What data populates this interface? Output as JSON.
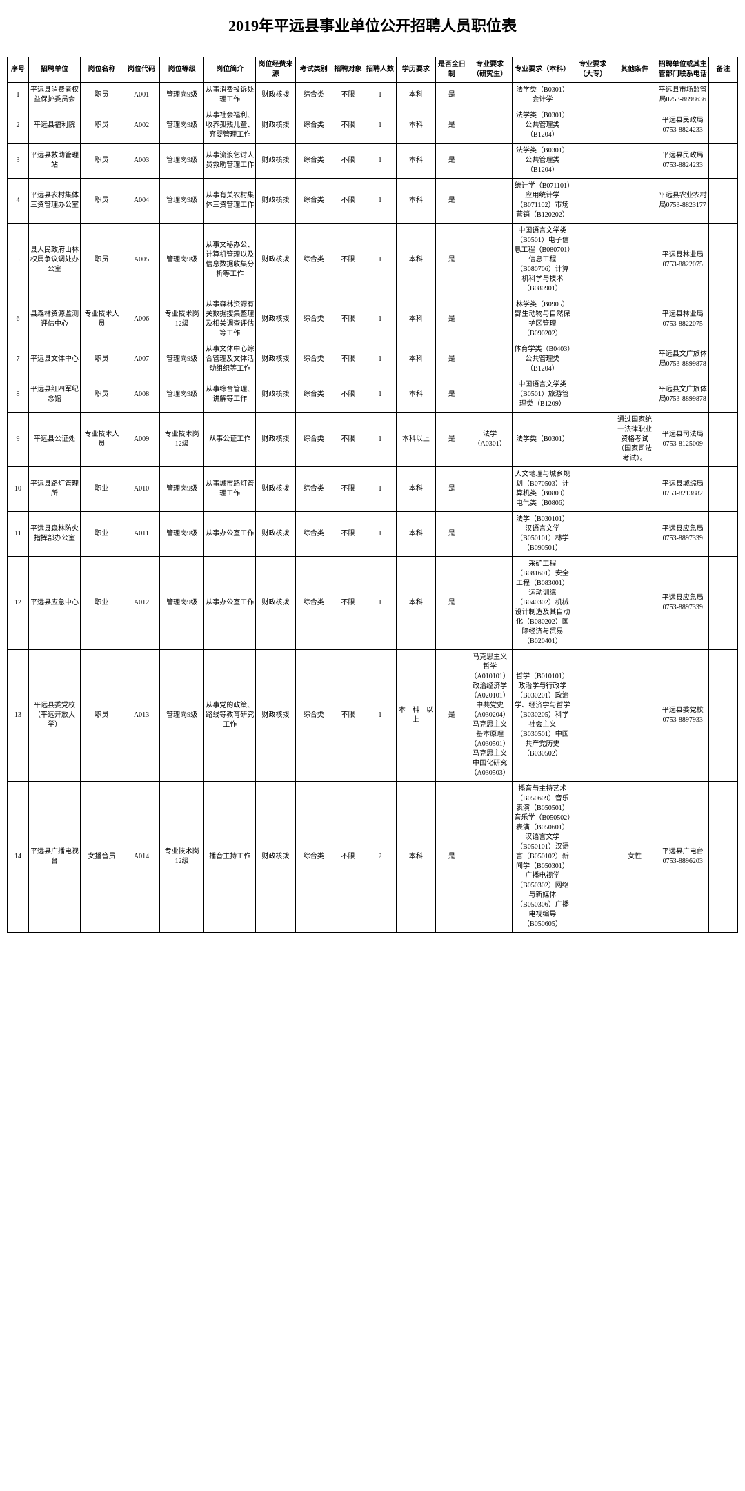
{
  "title": "2019年平远县事业单位公开招聘人员职位表",
  "headers": {
    "seq": "序号",
    "unit": "招聘单位",
    "pos": "岗位名称",
    "code": "岗位代码",
    "level": "岗位等级",
    "intro": "岗位简介",
    "fund": "岗位经费来源",
    "exam": "考试类别",
    "target": "招聘对象",
    "num": "招聘人数",
    "edu": "学历要求",
    "fulltime": "是否全日制",
    "grad": "专业要求（研究生）",
    "bach": "专业要求（本科）",
    "assoc": "专业要求（大专）",
    "other": "其他条件",
    "tel": "招聘单位或其主管部门联系电话",
    "remark": "备注"
  },
  "rows": [
    {
      "seq": "1",
      "unit": "平远县消费者权益保护委员会",
      "pos": "职员",
      "code": "A001",
      "level": "管理岗9级",
      "intro": "从事消费投诉处理工作",
      "fund": "财政核拨",
      "exam": "综合类",
      "target": "不限",
      "num": "1",
      "edu": "本科",
      "fulltime": "是",
      "grad": "",
      "bach": "法学类（B0301）会计学",
      "assoc": "",
      "other": "",
      "tel": "平远县市场监管局0753-8898636",
      "remark": ""
    },
    {
      "seq": "2",
      "unit": "平远县福利院",
      "pos": "职员",
      "code": "A002",
      "level": "管理岗9级",
      "intro": "从事社会福利、收养孤残儿童、弃婴管理工作",
      "fund": "财政核拨",
      "exam": "综合类",
      "target": "不限",
      "num": "1",
      "edu": "本科",
      "fulltime": "是",
      "grad": "",
      "bach": "法学类（B0301）公共管理类（B1204）",
      "assoc": "",
      "other": "",
      "tel": "平远县民政局0753-8824233",
      "remark": ""
    },
    {
      "seq": "3",
      "unit": "平远县救助管理站",
      "pos": "职员",
      "code": "A003",
      "level": "管理岗9级",
      "intro": "从事流浪乞讨人员救助管理工作",
      "fund": "财政核拨",
      "exam": "综合类",
      "target": "不限",
      "num": "1",
      "edu": "本科",
      "fulltime": "是",
      "grad": "",
      "bach": "法学类（B0301）公共管理类（B1204）",
      "assoc": "",
      "other": "",
      "tel": "平远县民政局0753-8824233",
      "remark": ""
    },
    {
      "seq": "4",
      "unit": "平远县农村集体三资管理办公室",
      "pos": "职员",
      "code": "A004",
      "level": "管理岗9级",
      "intro": "从事有关农村集体三资管理工作",
      "fund": "财政核拨",
      "exam": "综合类",
      "target": "不限",
      "num": "1",
      "edu": "本科",
      "fulltime": "是",
      "grad": "",
      "bach": "统计学（B071101）应用统计学（B071102）市场营销（B120202）",
      "assoc": "",
      "other": "",
      "tel": "平远县农业农村局0753-8823177",
      "remark": ""
    },
    {
      "seq": "5",
      "unit": "县人民政府山林权属争议调处办公室",
      "pos": "职员",
      "code": "A005",
      "level": "管理岗9级",
      "intro": "从事文秘办公、计算机管理以及信息数据收集分析等工作",
      "fund": "财政核拨",
      "exam": "综合类",
      "target": "不限",
      "num": "1",
      "edu": "本科",
      "fulltime": "是",
      "grad": "",
      "bach": "中国语言文学类（B0501）电子信息工程（B080701）信息工程（B080706）计算机科学与技术（B080901）",
      "assoc": "",
      "other": "",
      "tel": "平远县林业局0753-8822075",
      "remark": ""
    },
    {
      "seq": "6",
      "unit": "县森林资源监测评估中心",
      "pos": "专业技术人员",
      "code": "A006",
      "level": "专业技术岗12级",
      "intro": "从事森林资源有关数据搜集整理及相关调查评估等工作",
      "fund": "财政核拨",
      "exam": "综合类",
      "target": "不限",
      "num": "1",
      "edu": "本科",
      "fulltime": "是",
      "grad": "",
      "bach": "林学类（B0905）野生动物与自然保护区管理（B090202）",
      "assoc": "",
      "other": "",
      "tel": "平远县林业局0753-8822075",
      "remark": ""
    },
    {
      "seq": "7",
      "unit": "平远县文体中心",
      "pos": "职员",
      "code": "A007",
      "level": "管理岗9级",
      "intro": "从事文体中心综合管理及文体活动组织等工作",
      "fund": "财政核拨",
      "exam": "综合类",
      "target": "不限",
      "num": "1",
      "edu": "本科",
      "fulltime": "是",
      "grad": "",
      "bach": "体育学类（B0403）公共管理类（B1204）",
      "assoc": "",
      "other": "",
      "tel": "平远县文广旅体局0753-8899878",
      "remark": ""
    },
    {
      "seq": "8",
      "unit": "平远县红四军纪念馆",
      "pos": "职员",
      "code": "A008",
      "level": "管理岗9级",
      "intro": "从事综合管理、讲解等工作",
      "fund": "财政核拨",
      "exam": "综合类",
      "target": "不限",
      "num": "1",
      "edu": "本科",
      "fulltime": "是",
      "grad": "",
      "bach": "中国语言文学类（B0501）旅游管理类（B1209）",
      "assoc": "",
      "other": "",
      "tel": "平远县文广旅体局0753-8899878",
      "remark": ""
    },
    {
      "seq": "9",
      "unit": "平远县公证处",
      "pos": "专业技术人员",
      "code": "A009",
      "level": "专业技术岗12级",
      "intro": "从事公证工作",
      "fund": "财政核拨",
      "exam": "综合类",
      "target": "不限",
      "num": "1",
      "edu": "本科以上",
      "fulltime": "是",
      "grad": "法学（A0301）",
      "bach": "法学类（B0301）",
      "assoc": "",
      "other": "通过国家统一法律职业资格考试（国家司法考试）。",
      "tel": "平远县司法局0753-8125009",
      "remark": ""
    },
    {
      "seq": "10",
      "unit": "平远县路灯管理所",
      "pos": "职业",
      "code": "A010",
      "level": "管理岗9级",
      "intro": "从事城市路灯管理工作",
      "fund": "财政核拨",
      "exam": "综合类",
      "target": "不限",
      "num": "1",
      "edu": "本科",
      "fulltime": "是",
      "grad": "",
      "bach": "人文地理与城乡规划（B070503）计算机类（B0809）电气类（B0806）",
      "assoc": "",
      "other": "",
      "tel": "平远县城综局0753-8213882",
      "remark": ""
    },
    {
      "seq": "11",
      "unit": "平远县森林防火指挥部办公室",
      "pos": "职业",
      "code": "A011",
      "level": "管理岗9级",
      "intro": "从事办公室工作",
      "fund": "财政核拨",
      "exam": "综合类",
      "target": "不限",
      "num": "1",
      "edu": "本科",
      "fulltime": "是",
      "grad": "",
      "bach": "法学（B030101）汉语言文学（B050101）林学（B090501）",
      "assoc": "",
      "other": "",
      "tel": "平远县应急局0753-8897339",
      "remark": ""
    },
    {
      "seq": "12",
      "unit": "平远县应急中心",
      "pos": "职业",
      "code": "A012",
      "level": "管理岗9级",
      "intro": "从事办公室工作",
      "fund": "财政核拨",
      "exam": "综合类",
      "target": "不限",
      "num": "1",
      "edu": "本科",
      "fulltime": "是",
      "grad": "",
      "bach": "采矿工程（B081601）安全工程（B083001）运动训练（B040302）机械设计制造及其自动化（B080202）国际经济与贸易（B020401）",
      "assoc": "",
      "other": "",
      "tel": "平远县应急局0753-8897339",
      "remark": ""
    },
    {
      "seq": "13",
      "unit": "平远县委党校（平远开放大学）",
      "pos": "职员",
      "code": "A013",
      "level": "管理岗9级",
      "intro": "从事党的政策、路线等教育研究工作",
      "fund": "财政核拨",
      "exam": "综合类",
      "target": "不限",
      "num": "1",
      "edu": "本　科　以上",
      "fulltime": "是",
      "grad": "马克思主义哲学（A010101）政治经济学（A020101）中共党史（A030204）马克思主义基本原理（A030501）马克思主义中国化研究（A030503）",
      "bach": "哲学（B010101）政治学与行政学（B030201）政治学、经济学与哲学（B030205）科学社会主义（B030501）中国共产党历史（B030502）",
      "assoc": "",
      "other": "",
      "tel": "平远县委党校0753-8897933",
      "remark": ""
    },
    {
      "seq": "14",
      "unit": "平远县广播电视台",
      "pos": "女播音员",
      "code": "A014",
      "level": "专业技术岗12级",
      "intro": "播音主持工作",
      "fund": "财政核拨",
      "exam": "综合类",
      "target": "不限",
      "num": "2",
      "edu": "本科",
      "fulltime": "是",
      "grad": "",
      "bach": "播音与主持艺术（B050609）音乐表演（B050501）音乐学（B050502）表演（B050601）汉语言文学（B050101）汉语言（B050102）新闻学（B050301）广播电视学（B050302）网络与新媒体（B050306）广播电视编导（B050605）",
      "assoc": "",
      "other": "女性",
      "tel": "平远县广电台0753-8896203",
      "remark": ""
    }
  ]
}
